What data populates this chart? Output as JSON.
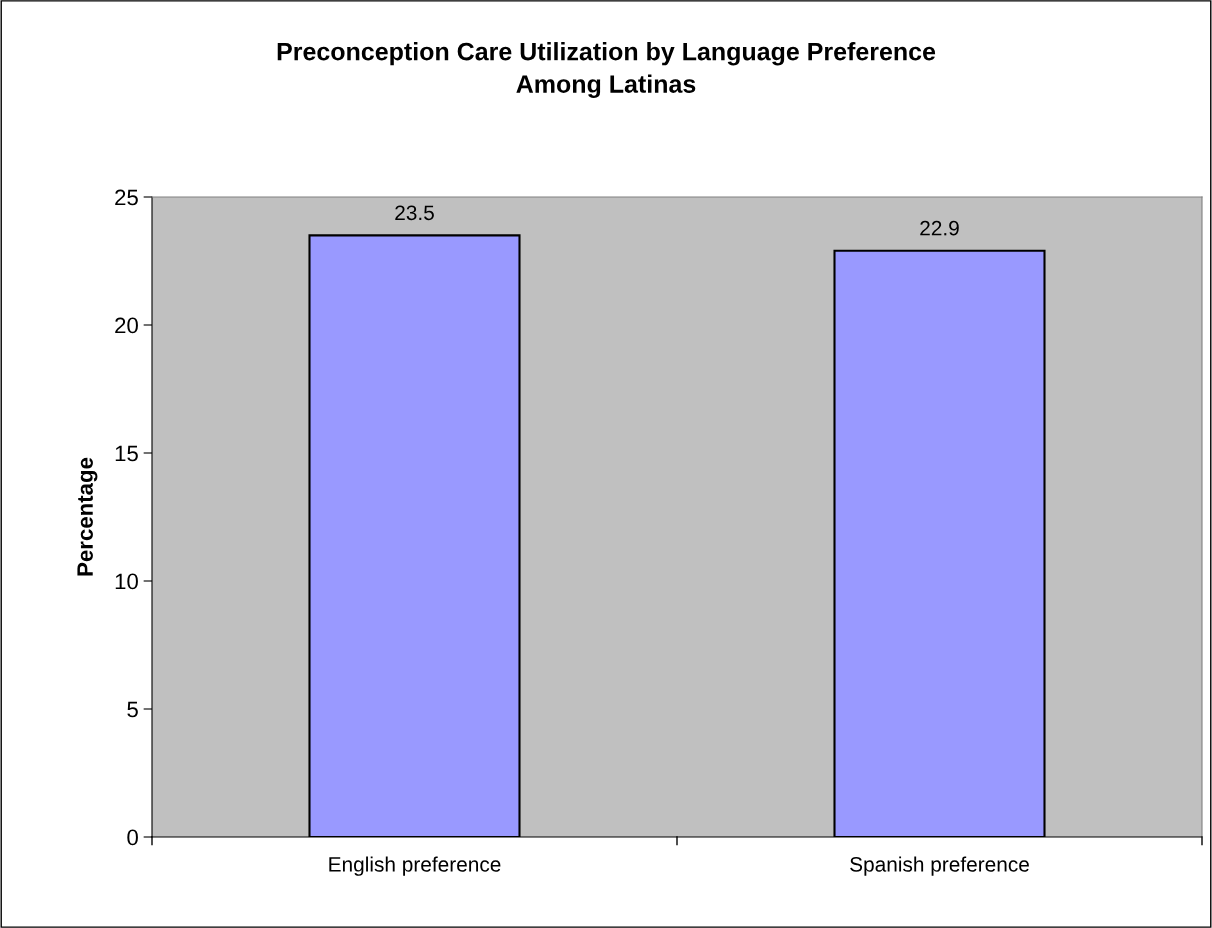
{
  "chart_data": {
    "type": "bar",
    "title": "Preconception Care Utilization by Language Preference\nAmong Latinas",
    "ylabel": "Percentage",
    "categories": [
      "English preference",
      "Spanish preference"
    ],
    "values": [
      23.5,
      22.9
    ],
    "color": "#9999ff",
    "ylim": [
      0,
      25
    ],
    "yticks": [
      0,
      5,
      10,
      15,
      20,
      25
    ],
    "grid": false,
    "data_labels": true
  }
}
